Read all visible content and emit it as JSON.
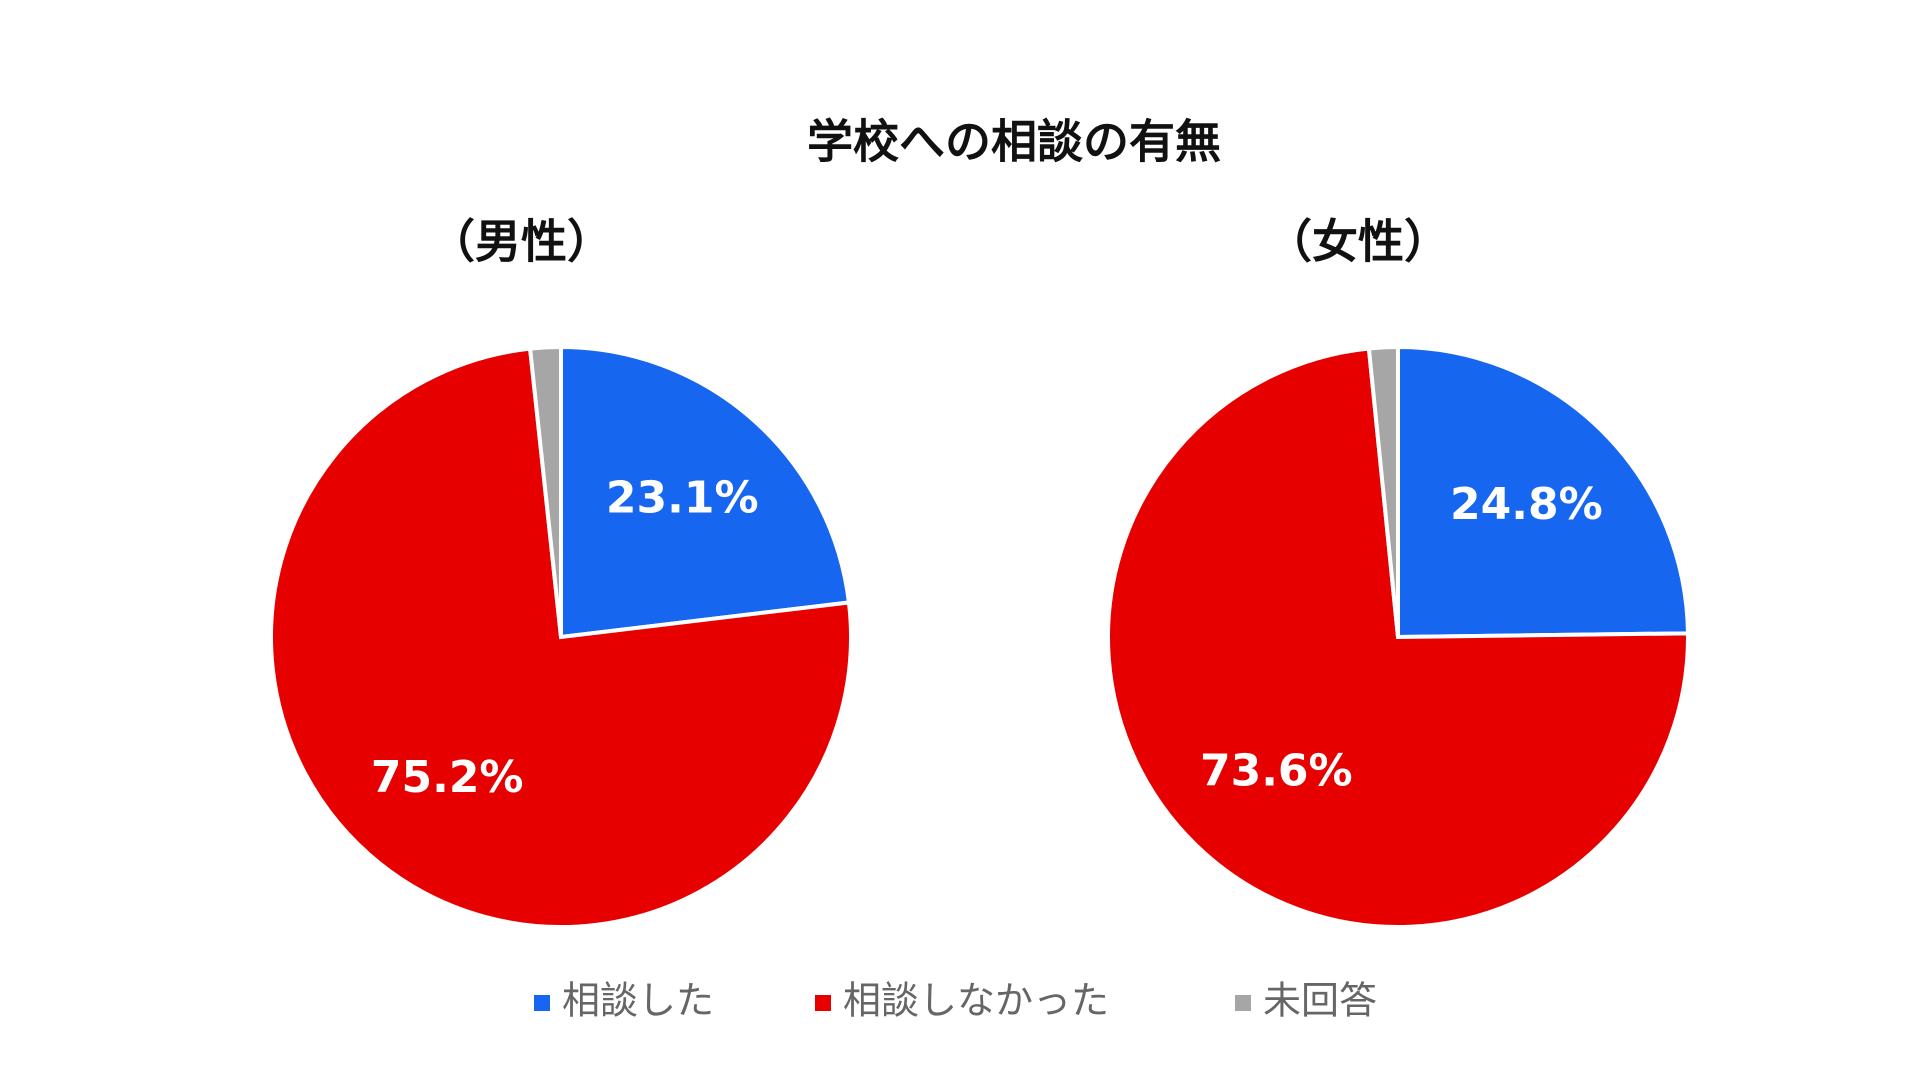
{
  "title": "学校への相談の有無",
  "chart_data": [
    {
      "type": "pie",
      "title": "（男性）",
      "categories": [
        "相談した",
        "相談しなかった",
        "未回答"
      ],
      "values": [
        23.1,
        75.2,
        1.7
      ],
      "value_labels": [
        "23.1%",
        "75.2%",
        null
      ],
      "colors": [
        "#1766f0",
        "#e60000",
        "#a6a6a6"
      ]
    },
    {
      "type": "pie",
      "title": "（女性）",
      "categories": [
        "相談した",
        "相談しなかった",
        "未回答"
      ],
      "values": [
        24.8,
        73.6,
        1.6
      ],
      "value_labels": [
        "24.8%",
        "73.6%",
        null
      ],
      "colors": [
        "#1766f0",
        "#e60000",
        "#a6a6a6"
      ]
    }
  ]
}
